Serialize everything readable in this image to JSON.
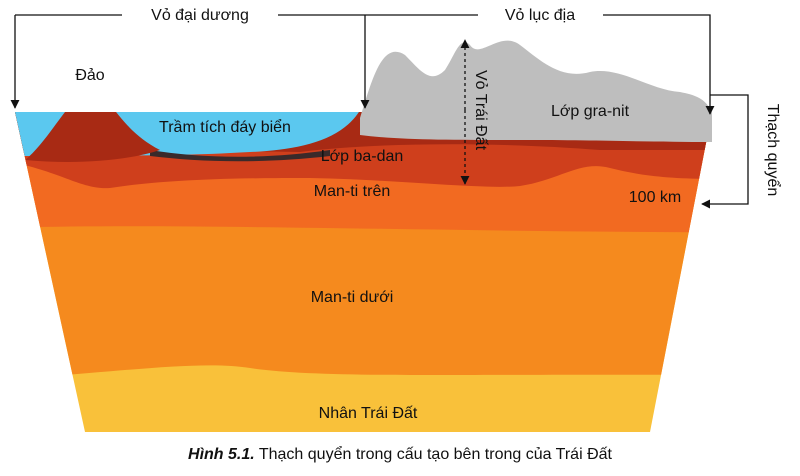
{
  "labels": {
    "oceanic_crust": "Vỏ đại dương",
    "continental_crust": "Vỏ lục địa",
    "island": "Đảo",
    "sediment": "Trầm tích đáy biển",
    "basalt": "Lớp ba-dan",
    "granite": "Lớp gra-nit",
    "earth_crust": "Vỏ Trái Đất",
    "lithosphere": "Thạch quyển",
    "depth": "100 km",
    "upper_mantle": "Man-ti trên",
    "lower_mantle": "Man-ti dưới",
    "core": "Nhân Trái Đất"
  },
  "caption": {
    "number": "Hình 5.1.",
    "text": "Thạch quyển trong cấu tạo bên trong của Trái Đất"
  }
}
